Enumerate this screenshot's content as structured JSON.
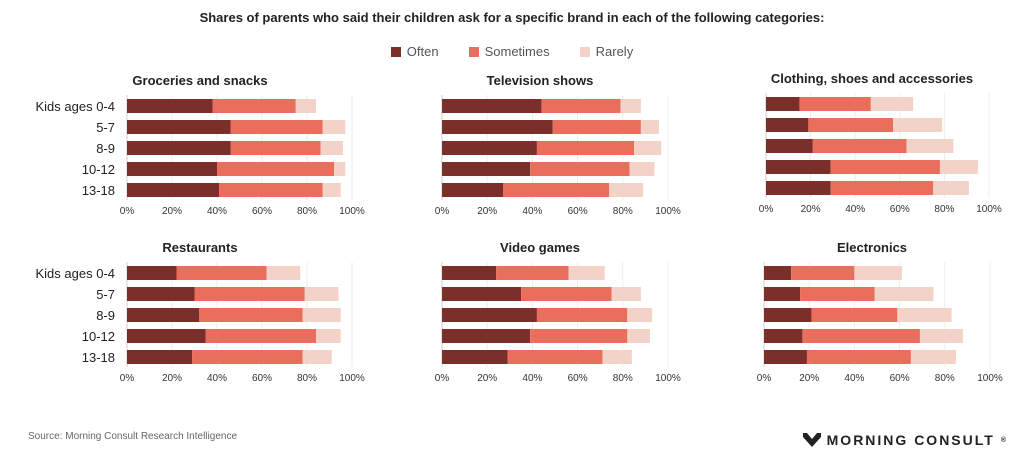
{
  "title": "Shares of parents who said their children ask for a specific brand in each of the following categories:",
  "legend": [
    {
      "name": "Often",
      "color": "#7b2f2b"
    },
    {
      "name": "Sometimes",
      "color": "#ea6e5c"
    },
    {
      "name": "Rarely",
      "color": "#f3d2c8"
    }
  ],
  "source": "Source: Morning Consult Research Intelligence",
  "brand": {
    "name": "MORNING CONSULT",
    "mark": "®"
  },
  "chart_data": [
    {
      "type": "bar",
      "stacked": true,
      "orientation": "horizontal",
      "title": "Groceries and snacks",
      "categories": [
        "Kids ages 0-4",
        "5-7",
        "8-9",
        "10-12",
        "13-18"
      ],
      "xlim": [
        0,
        100
      ],
      "ticks": [
        "0%",
        "20%",
        "40%",
        "60%",
        "80%",
        "100%"
      ],
      "series": [
        {
          "name": "Often",
          "values": [
            38,
            46,
            46,
            40,
            41
          ]
        },
        {
          "name": "Sometimes",
          "values": [
            37,
            41,
            40,
            52,
            46
          ]
        },
        {
          "name": "Rarely",
          "values": [
            9,
            10,
            10,
            5,
            8
          ]
        }
      ]
    },
    {
      "type": "bar",
      "stacked": true,
      "orientation": "horizontal",
      "title": "Television shows",
      "categories": [
        "Kids ages 0-4",
        "5-7",
        "8-9",
        "10-12",
        "13-18"
      ],
      "xlim": [
        0,
        100
      ],
      "ticks": [
        "0%",
        "20%",
        "40%",
        "60%",
        "80%",
        "100%"
      ],
      "series": [
        {
          "name": "Often",
          "values": [
            44,
            49,
            42,
            39,
            27
          ]
        },
        {
          "name": "Sometimes",
          "values": [
            35,
            39,
            43,
            44,
            47
          ]
        },
        {
          "name": "Rarely",
          "values": [
            9,
            8,
            12,
            11,
            15
          ]
        }
      ]
    },
    {
      "type": "bar",
      "stacked": true,
      "orientation": "horizontal",
      "title": "Clothing, shoes and accessories",
      "categories": [
        "Kids ages 0-4",
        "5-7",
        "8-9",
        "10-12",
        "13-18"
      ],
      "xlim": [
        0,
        100
      ],
      "ticks": [
        "0%",
        "20%",
        "40%",
        "60%",
        "80%",
        "100%"
      ],
      "series": [
        {
          "name": "Often",
          "values": [
            15,
            19,
            21,
            29,
            29
          ]
        },
        {
          "name": "Sometimes",
          "values": [
            32,
            38,
            42,
            49,
            46
          ]
        },
        {
          "name": "Rarely",
          "values": [
            19,
            22,
            21,
            17,
            16
          ]
        }
      ]
    },
    {
      "type": "bar",
      "stacked": true,
      "orientation": "horizontal",
      "title": "Restaurants",
      "categories": [
        "Kids ages 0-4",
        "5-7",
        "8-9",
        "10-12",
        "13-18"
      ],
      "xlim": [
        0,
        100
      ],
      "ticks": [
        "0%",
        "20%",
        "40%",
        "60%",
        "80%",
        "100%"
      ],
      "series": [
        {
          "name": "Often",
          "values": [
            22,
            30,
            32,
            35,
            29
          ]
        },
        {
          "name": "Sometimes",
          "values": [
            40,
            49,
            46,
            49,
            49
          ]
        },
        {
          "name": "Rarely",
          "values": [
            15,
            15,
            17,
            11,
            13
          ]
        }
      ]
    },
    {
      "type": "bar",
      "stacked": true,
      "orientation": "horizontal",
      "title": "Video games",
      "categories": [
        "Kids ages 0-4",
        "5-7",
        "8-9",
        "10-12",
        "13-18"
      ],
      "xlim": [
        0,
        100
      ],
      "ticks": [
        "0%",
        "20%",
        "40%",
        "60%",
        "80%",
        "100%"
      ],
      "series": [
        {
          "name": "Often",
          "values": [
            24,
            35,
            42,
            39,
            29
          ]
        },
        {
          "name": "Sometimes",
          "values": [
            32,
            40,
            40,
            43,
            42
          ]
        },
        {
          "name": "Rarely",
          "values": [
            16,
            13,
            11,
            10,
            13
          ]
        }
      ]
    },
    {
      "type": "bar",
      "stacked": true,
      "orientation": "horizontal",
      "title": "Electronics",
      "categories": [
        "Kids ages 0-4",
        "5-7",
        "8-9",
        "10-12",
        "13-18"
      ],
      "xlim": [
        0,
        100
      ],
      "ticks": [
        "0%",
        "20%",
        "40%",
        "60%",
        "80%",
        "100%"
      ],
      "series": [
        {
          "name": "Often",
          "values": [
            12,
            16,
            21,
            17,
            19
          ]
        },
        {
          "name": "Sometimes",
          "values": [
            28,
            33,
            38,
            52,
            46
          ]
        },
        {
          "name": "Rarely",
          "values": [
            21,
            26,
            24,
            19,
            20
          ]
        }
      ]
    }
  ]
}
